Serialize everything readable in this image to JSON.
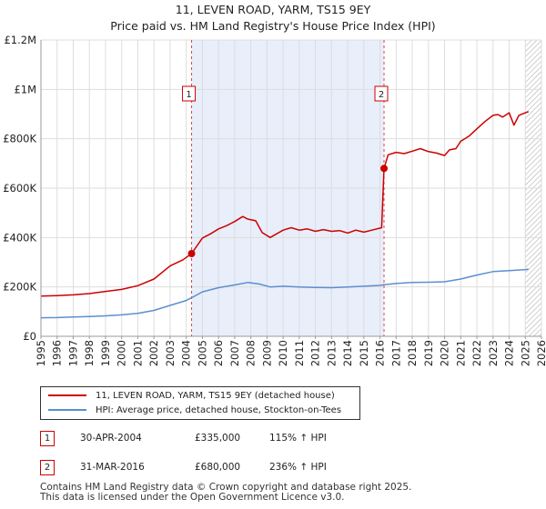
{
  "chart_data": {
    "type": "line",
    "title": "11, LEVEN ROAD, YARM, TS15 9EY",
    "subtitle": "Price paid vs. HM Land Registry's House Price Index (HPI)",
    "xlabel": "",
    "ylabel": "",
    "xlim": [
      1995,
      2026
    ],
    "ylim": [
      0,
      1200000
    ],
    "y_ticks": [
      {
        "value": 0,
        "label": "£0"
      },
      {
        "value": 200000,
        "label": "£200K"
      },
      {
        "value": 400000,
        "label": "£400K"
      },
      {
        "value": 600000,
        "label": "£600K"
      },
      {
        "value": 800000,
        "label": "£800K"
      },
      {
        "value": 1000000,
        "label": "£1M"
      },
      {
        "value": 1200000,
        "label": "£1.2M"
      }
    ],
    "x_ticks": [
      "1995",
      "1996",
      "1997",
      "1998",
      "1999",
      "2000",
      "2001",
      "2002",
      "2003",
      "2004",
      "2005",
      "2006",
      "2007",
      "2008",
      "2009",
      "2010",
      "2011",
      "2012",
      "2013",
      "2014",
      "2015",
      "2016",
      "2017",
      "2018",
      "2019",
      "2020",
      "2021",
      "2022",
      "2023",
      "2024",
      "2025",
      "2026"
    ],
    "grid": true,
    "shaded_period": [
      2004.33,
      2016.25
    ],
    "future_hatch_from": 2025.0,
    "series": [
      {
        "name": "11, LEVEN ROAD, YARM, TS15 9EY (detached house)",
        "color": "#cc0000",
        "x": [
          1995,
          1996,
          1997,
          1998,
          1999,
          2000,
          2001,
          2002,
          2003,
          2003.8,
          2004.33,
          2005,
          2005.5,
          2006,
          2006.5,
          2007,
          2007.5,
          2007.8,
          2008.3,
          2008.7,
          2009.2,
          2010,
          2010.5,
          2011,
          2011.5,
          2012,
          2012.5,
          2013,
          2013.5,
          2014,
          2014.5,
          2015,
          2015.5,
          2016.1,
          2016.25,
          2016.5,
          2017,
          2017.5,
          2018,
          2018.5,
          2019,
          2019.5,
          2020,
          2020.3,
          2020.7,
          2021,
          2021.5,
          2022,
          2022.5,
          2023,
          2023.3,
          2023.6,
          2024,
          2024.3,
          2024.6,
          2025,
          2025.2
        ],
        "values": [
          163000,
          165000,
          168000,
          173000,
          182000,
          190000,
          205000,
          232000,
          285000,
          310000,
          335000,
          398000,
          415000,
          435000,
          448000,
          465000,
          485000,
          475000,
          468000,
          420000,
          400000,
          430000,
          440000,
          430000,
          435000,
          425000,
          432000,
          425000,
          428000,
          418000,
          430000,
          422000,
          430000,
          440000,
          680000,
          735000,
          745000,
          740000,
          750000,
          760000,
          748000,
          742000,
          732000,
          755000,
          760000,
          790000,
          810000,
          840000,
          870000,
          895000,
          898000,
          888000,
          905000,
          855000,
          895000,
          905000,
          910000
        ]
      },
      {
        "name": "HPI: Average price, detached house, Stockton-on-Tees",
        "color": "#5b8fd0",
        "x": [
          1995,
          1996,
          1997,
          1998,
          1999,
          2000,
          2001,
          2002,
          2003,
          2004,
          2004.33,
          2005,
          2006,
          2007,
          2007.8,
          2008.5,
          2009.2,
          2010,
          2011,
          2012,
          2013,
          2014,
          2015,
          2016,
          2016.25,
          2017,
          2018,
          2019,
          2020,
          2021,
          2022,
          2023,
          2024,
          2025,
          2025.2
        ],
        "values": [
          75000,
          76000,
          78000,
          80000,
          83000,
          87000,
          93000,
          105000,
          125000,
          145000,
          156000,
          180000,
          197000,
          208000,
          218000,
          212000,
          200000,
          203000,
          200000,
          198000,
          197000,
          200000,
          203000,
          206000,
          209000,
          214000,
          218000,
          219000,
          221000,
          232000,
          248000,
          262000,
          266000,
          270000,
          272000
        ]
      }
    ],
    "annotations": [
      {
        "label": "1",
        "x": 2004.33,
        "value": 335000
      },
      {
        "label": "2",
        "x": 2016.25,
        "value": 680000
      }
    ],
    "legend": {
      "entry_1": "11, LEVEN ROAD, YARM, TS15 9EY (detached house)",
      "entry_2": "HPI: Average price, detached house, Stockton-on-Tees"
    },
    "transactions": [
      {
        "num": "1",
        "date": "30-APR-2004",
        "price": "£335,000",
        "hpi": "115% ↑ HPI"
      },
      {
        "num": "2",
        "date": "31-MAR-2016",
        "price": "£680,000",
        "hpi": "236% ↑ HPI"
      }
    ],
    "footer": {
      "line_1": "Contains HM Land Registry data © Crown copyright and database right 2025.",
      "line_2": "This data is licensed under the Open Government Licence v3.0."
    }
  }
}
